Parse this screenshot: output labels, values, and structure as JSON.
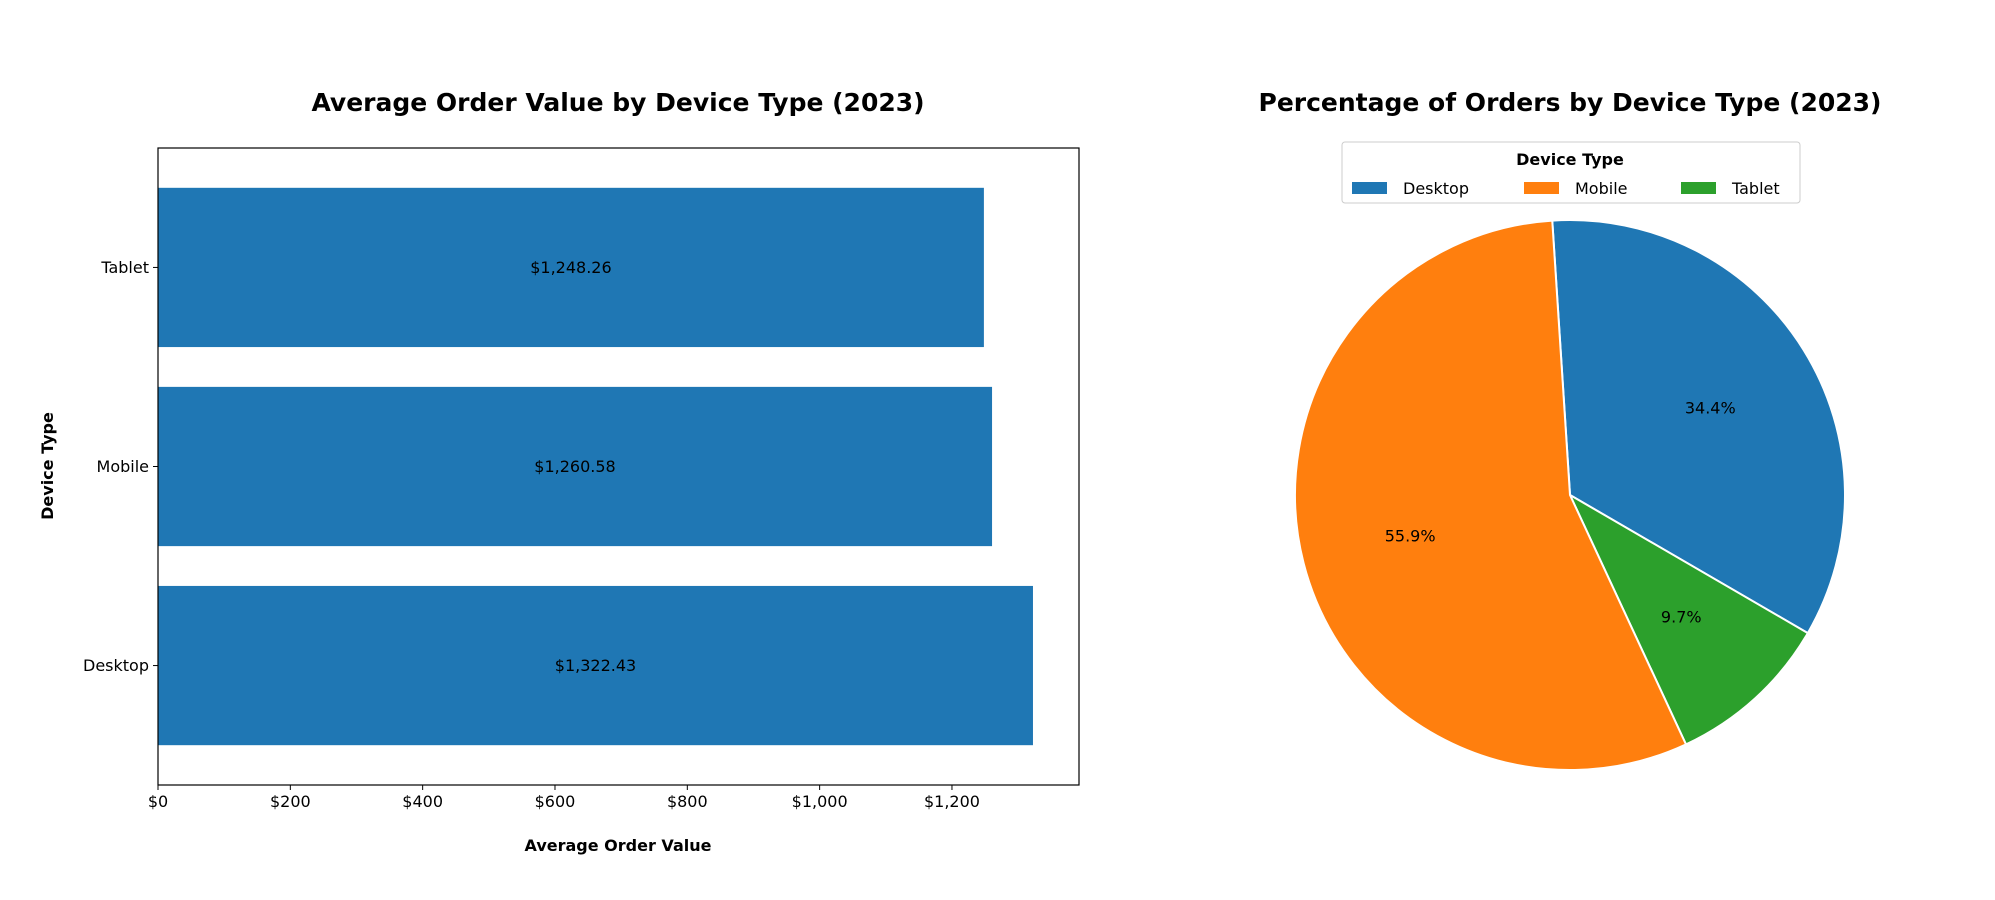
{
  "chart_data": [
    {
      "type": "bar",
      "orientation": "horizontal",
      "title": "Average Order Value by Device Type (2023)",
      "xlabel": "Average Order Value",
      "ylabel": "Device Type",
      "categories": [
        "Desktop",
        "Mobile",
        "Tablet"
      ],
      "values": [
        1322.43,
        1260.58,
        1248.26
      ],
      "data_labels": [
        "$1,322.43",
        "$1,260.58",
        "$1,248.26"
      ],
      "xlim": [
        0,
        1392
      ],
      "xticks": [
        0,
        200,
        400,
        600,
        800,
        1000,
        1200
      ],
      "xtick_labels": [
        "$0",
        "$200",
        "$400",
        "$600",
        "$800",
        "$1,000",
        "$1,200"
      ],
      "color": "#1f77b4",
      "grid": false
    },
    {
      "type": "pie",
      "title": "Percentage of Orders by Device Type (2023)",
      "labels": [
        "Desktop",
        "Tablet",
        "Mobile"
      ],
      "values": [
        34.4,
        9.7,
        55.9
      ],
      "data_labels": [
        "34.4%",
        "9.7%",
        "55.9%"
      ],
      "colors": [
        "#1f77b4",
        "#2ca02c",
        "#ff7f0e"
      ],
      "legend": {
        "title": "Device Type",
        "placement": "top-center",
        "entries": [
          {
            "label": "Desktop",
            "color": "#1f77b4"
          },
          {
            "label": "Mobile",
            "color": "#ff7f0e"
          },
          {
            "label": "Tablet",
            "color": "#2ca02c"
          }
        ]
      }
    }
  ]
}
